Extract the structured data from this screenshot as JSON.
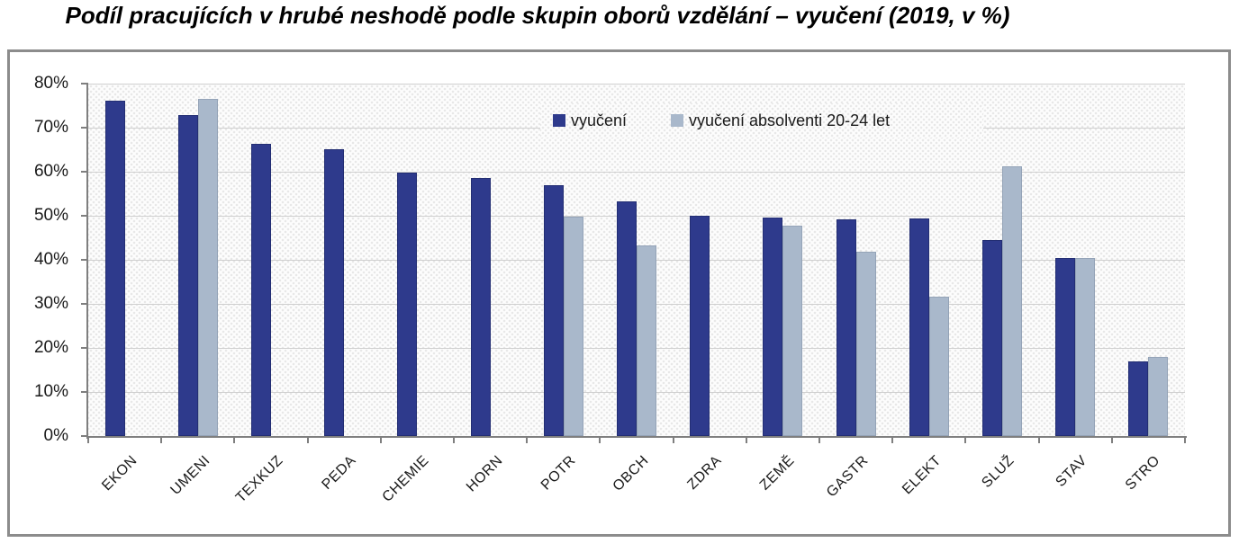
{
  "chart_data": {
    "type": "bar",
    "title": "Podíl pracujících v hrubé neshodě podle skupin oborů vzdělání – vyučení (2019, v %)",
    "categories": [
      "EKON",
      "UMENI",
      "TEXKUZ",
      "PEDA",
      "CHEMIE",
      "HORN",
      "POTR",
      "OBCH",
      "ZDRA",
      "ZEMĚ",
      "GASTR",
      "ELEKT",
      "SLUŽ",
      "STAV",
      "STRO"
    ],
    "series": [
      {
        "name": "vyučení",
        "color": "#2E3A8C",
        "border_color": "#232e73",
        "values": [
          76.1,
          72.9,
          66.4,
          65.1,
          59.8,
          58.5,
          56.9,
          53.3,
          50.0,
          49.6,
          49.2,
          49.3,
          44.5,
          40.5,
          17.0
        ]
      },
      {
        "name": "vyučení absolventi 20-24 let",
        "color": "#A9B8CB",
        "border_color": "#94a3b7",
        "values": [
          null,
          76.6,
          null,
          null,
          null,
          null,
          49.7,
          43.2,
          null,
          47.8,
          41.8,
          31.7,
          61.2,
          40.5,
          18.0
        ]
      }
    ],
    "xlabel": "",
    "ylabel": "",
    "ylim": [
      0,
      80
    ],
    "y_ticks": [
      "0%",
      "10%",
      "20%",
      "30%",
      "40%",
      "50%",
      "60%",
      "70%",
      "80%"
    ],
    "grid": true,
    "legend_position": "inside-top-center",
    "colors": {
      "axis": "#7f7f7f",
      "gridline": "#cfcfcf",
      "frame_border": "#8c8c8c",
      "text": "#1a1a1a"
    }
  }
}
